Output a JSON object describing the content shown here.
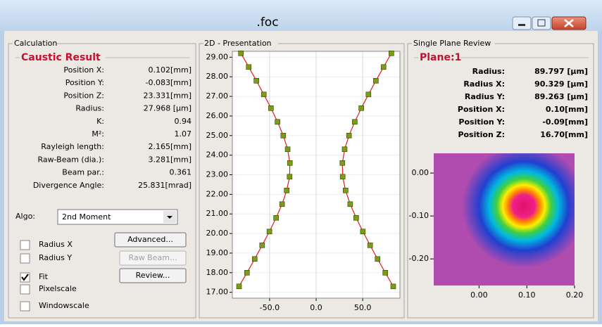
{
  "window": {
    "title": ".foc"
  },
  "calculation": {
    "group": "Calculation",
    "heading": "Caustic Result",
    "rows": [
      [
        "Position X:",
        "0.102[mm]"
      ],
      [
        "Position Y:",
        "-0.083[mm]"
      ],
      [
        "Position Z:",
        "23.331[mm]"
      ],
      [
        "Radius:",
        "27.968 [µm]"
      ],
      [
        "K:",
        "0.94"
      ],
      [
        "M²:",
        "1.07"
      ],
      [
        "Rayleigh length:",
        "2.165[mm]"
      ],
      [
        "Raw-Beam (dia.):",
        "3.281[mm]"
      ],
      [
        "Beam par.:",
        "0.361"
      ],
      [
        "Divergence Angle:",
        "25.831[mrad]"
      ]
    ],
    "algo_label": "Algo:",
    "algo_value": "2nd Moment",
    "buttons": [
      {
        "label": "Advanced...",
        "enabled": true
      },
      {
        "label": "Raw Beam...",
        "enabled": false
      },
      {
        "label": "Review...",
        "enabled": true
      }
    ],
    "checkboxes": [
      {
        "label": "Radius X",
        "checked": false
      },
      {
        "label": "Radius Y",
        "checked": false
      },
      {
        "label": "Fit",
        "checked": true
      },
      {
        "label": "Pixelscale",
        "checked": false
      },
      {
        "label": "Windowscale",
        "checked": false
      }
    ]
  },
  "presentation": {
    "group": "2D - Presentation",
    "chart_data": {
      "type": "scatter",
      "grid": true,
      "xlim": [
        -90,
        90
      ],
      "ylim": [
        16.7,
        29.3
      ],
      "xticks": [
        {
          "value": -50,
          "label": "-50.0"
        },
        {
          "value": 0,
          "label": "0.0"
        },
        {
          "value": 50,
          "label": "50.0"
        }
      ],
      "yticks": [
        {
          "value": 17,
          "label": "17.00"
        },
        {
          "value": 18,
          "label": "18.00"
        },
        {
          "value": 19,
          "label": "19.00"
        },
        {
          "value": 20,
          "label": "20.00"
        },
        {
          "value": 21,
          "label": "21.00"
        },
        {
          "value": 22,
          "label": "22.00"
        },
        {
          "value": 23,
          "label": "23.00"
        },
        {
          "value": 24,
          "label": "24.00"
        },
        {
          "value": 25,
          "label": "25.00"
        },
        {
          "value": 26,
          "label": "26.00"
        },
        {
          "value": 27,
          "label": "27.00"
        },
        {
          "value": 28,
          "label": "28.00"
        },
        {
          "value": 29,
          "label": "29.00"
        }
      ],
      "series": [
        {
          "color": "#e0201c",
          "marker_color": "#7a9c18",
          "x": [
            -80.8,
            -72.4,
            -64.2,
            -56.2,
            -48.5,
            -41.5,
            -35.3,
            -30.6,
            -28.2,
            -28.5,
            -31.6,
            -36.6,
            -43.0,
            -50.2,
            -58.0,
            -66.0,
            -74.3,
            -82.8
          ],
          "values": [
            29.2,
            28.5,
            27.8,
            27.1,
            26.4,
            25.7,
            25.0,
            24.3,
            23.6,
            22.9,
            22.2,
            21.5,
            20.8,
            20.1,
            19.4,
            18.7,
            18.0,
            17.3
          ]
        },
        {
          "color": "#e0201c",
          "marker_color": "#7a9c18",
          "x": [
            80.8,
            72.4,
            64.2,
            56.2,
            48.5,
            41.5,
            35.3,
            30.6,
            28.2,
            28.5,
            31.6,
            36.6,
            43.0,
            50.2,
            58.0,
            66.0,
            74.3,
            82.8
          ],
          "values": [
            29.2,
            28.5,
            27.8,
            27.1,
            26.4,
            25.7,
            25.0,
            24.3,
            23.6,
            22.9,
            22.2,
            21.5,
            20.8,
            20.1,
            19.4,
            18.7,
            18.0,
            17.3
          ]
        }
      ]
    }
  },
  "review": {
    "group": "Single Plane Review",
    "heading": "Plane:1",
    "rows": [
      [
        "Radius:",
        "89.797 [µm]"
      ],
      [
        "Radius X:",
        "90.329 [µm]"
      ],
      [
        "Radius Y:",
        "89.263 [µm]"
      ],
      [
        "Position X:",
        "0.10[mm]"
      ],
      [
        "Position Y:",
        "-0.09[mm]"
      ],
      [
        "Position Z:",
        "16.70[mm]"
      ]
    ],
    "chart_data": {
      "type": "heatmap",
      "xlim": [
        -0.095,
        0.2
      ],
      "ylim": [
        -0.262,
        0.046
      ],
      "xticks": [
        {
          "value": 0,
          "label": "0.00"
        },
        {
          "value": 0.1,
          "label": "0.10"
        },
        {
          "value": 0.2,
          "label": "0.20"
        }
      ],
      "yticks": [
        {
          "value": 0,
          "label": "0.00"
        },
        {
          "value": -0.1,
          "label": "-0.10"
        },
        {
          "value": -0.2,
          "label": "-0.20"
        }
      ]
    }
  }
}
